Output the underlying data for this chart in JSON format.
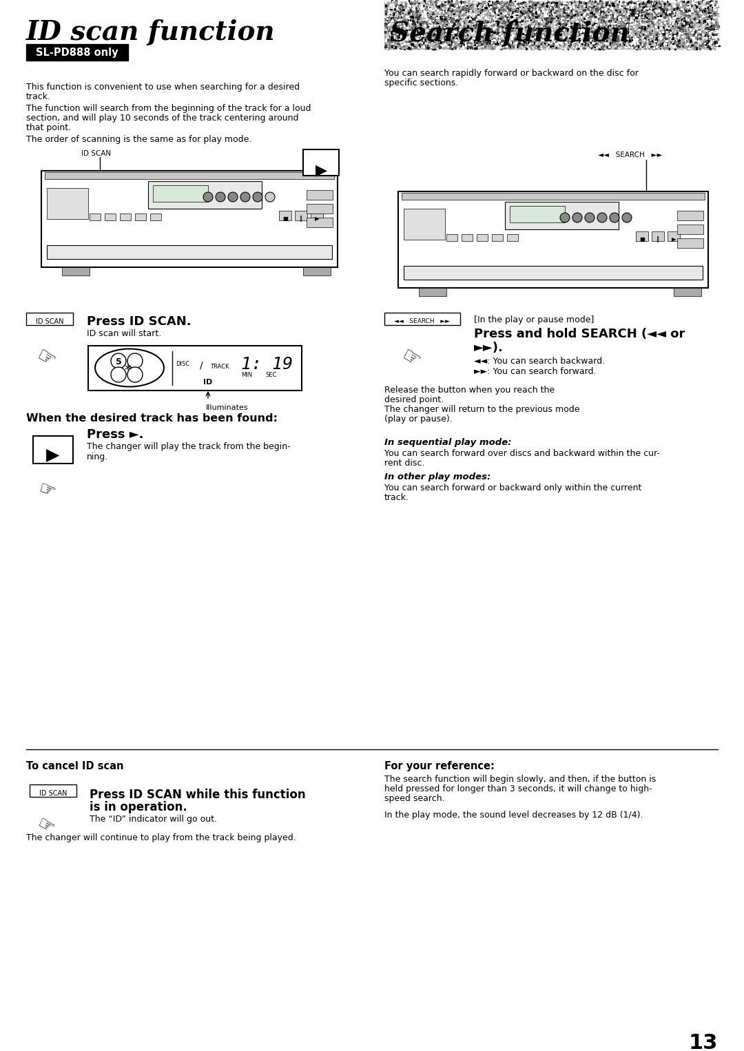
{
  "page_number": "13",
  "left_title": "ID scan function",
  "left_subtitle": "SL-PD888 only",
  "right_title": "Search function",
  "bg_color": "#ffffff",
  "left_intro_lines": [
    "This function is convenient to use when searching for a desired",
    "track.",
    "The function will search from the beginning of the track for a loud",
    "section, and will play 10 seconds of the track centering around",
    "that point.",
    "The order of scanning is the same as for play mode."
  ],
  "right_intro_lines": [
    "You can search rapidly forward or backward on the disc for",
    "specific sections."
  ],
  "step1_bold": "Press ID SCAN.",
  "step1_sub": "ID scan will start.",
  "illuminates": "Illuminates",
  "when_found": "When the desired track has been found:",
  "press_play_bold": "Press ►.",
  "press_play_sub1": "The changer will play the track from the begin-",
  "press_play_sub2": "ning.",
  "search_header": "[In the play or pause mode]",
  "search_bold1": "Press and hold SEARCH (◄◄ or",
  "search_bold2": "►►).",
  "search_s1": "◄◄: You can search backward.",
  "search_s2": "►►: You can search forward.",
  "search_release": [
    "Release the button when you reach the",
    "desired point.",
    "The changer will return to the previous mode",
    "(play or pause)."
  ],
  "seq_title": "In sequential play mode:",
  "seq_text1": "You can search forward over discs and backward within the cur-",
  "seq_text2": "rent disc.",
  "other_title": "In other play modes:",
  "other_text1": "You can search forward or backward only within the current",
  "other_text2": "track.",
  "cancel_title": "To cancel ID scan",
  "cancel_bold1": "Press ID SCAN while this function",
  "cancel_bold2": "is in operation.",
  "cancel_sub": "The “ID” indicator will go out.",
  "cancel_note": "The changer will continue to play from the track being played.",
  "ref_title": "For your reference:",
  "ref_text1": "The search function will begin slowly, and then, if the button is",
  "ref_text2": "held pressed for longer than 3 seconds, it will change to high-",
  "ref_text3": "speed search.",
  "ref_text4": "In the play mode, the sound level decreases by 12 dB (1/4)."
}
